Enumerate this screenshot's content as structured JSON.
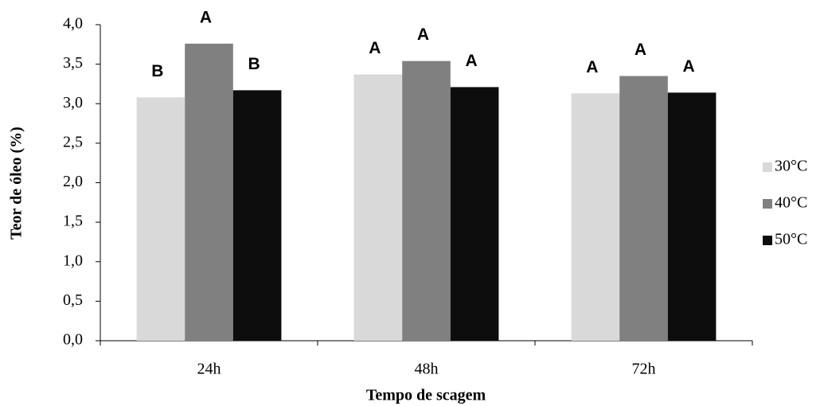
{
  "chart_data": {
    "type": "bar",
    "categories": [
      "24h",
      "48h",
      "72h"
    ],
    "series": [
      {
        "name": "30°C",
        "color": "#d9d9d9",
        "values": [
          3.08,
          3.37,
          3.13
        ],
        "letters": [
          "B",
          "A",
          "A"
        ]
      },
      {
        "name": "40°C",
        "color": "#808080",
        "values": [
          3.76,
          3.54,
          3.35
        ],
        "letters": [
          "A",
          "A",
          "A"
        ]
      },
      {
        "name": "50°C",
        "color": "#0d0d0d",
        "values": [
          3.17,
          3.21,
          3.14
        ],
        "letters": [
          "B",
          "A",
          "A"
        ]
      }
    ],
    "xlabel": "Tempo de scagem",
    "ylabel": "Teor de óleo (%)",
    "ylim": [
      0,
      4
    ],
    "yticks": [
      {
        "value": 0,
        "label": "0,0"
      },
      {
        "value": 0.5,
        "label": "0,5"
      },
      {
        "value": 1,
        "label": "1,0"
      },
      {
        "value": 1.5,
        "label": "1,5"
      },
      {
        "value": 2,
        "label": "2,0"
      },
      {
        "value": 2.5,
        "label": "2,5"
      },
      {
        "value": 3,
        "label": "3,0"
      },
      {
        "value": 3.5,
        "label": "3,5"
      },
      {
        "value": 4,
        "label": "4,0"
      }
    ],
    "grid": false,
    "legend": "right"
  }
}
